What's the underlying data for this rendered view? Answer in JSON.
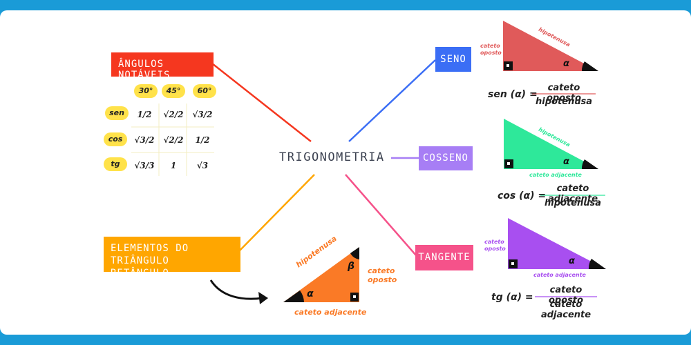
{
  "center": "TRIGONOMETRIA",
  "boxes": {
    "angulos": "ÂNGULOS NOTÁVEIS",
    "elementos_l1": "ELEMENTOS DO TRIÂNGULO",
    "elementos_l2": "RETÂNGULO",
    "seno": "SENO",
    "cosseno": "COSSENO",
    "tangente": "TANGENTE"
  },
  "table": {
    "angles": [
      "30°",
      "45°",
      "60°"
    ],
    "rows": [
      {
        "label": "sen",
        "values": [
          "1/2",
          "√2/2",
          "√3/2"
        ]
      },
      {
        "label": "cos",
        "values": [
          "√3/2",
          "√2/2",
          "1/2"
        ]
      },
      {
        "label": "tg",
        "values": [
          "√3/3",
          "1",
          "√3"
        ]
      }
    ]
  },
  "triangle_main": {
    "hyp": "hipotenusa",
    "opp_l1": "cateto",
    "opp_l2": "oposto",
    "adj": "cateto adjacente",
    "alpha": "α",
    "beta": "β"
  },
  "seno": {
    "opp_l1": "cateto",
    "opp_l2": "oposto",
    "hyp": "hipotenusa",
    "alpha": "α",
    "lhs": "sen (α) =",
    "num": "cateto oposto",
    "den": "hipotenusa"
  },
  "cosseno": {
    "hyp": "hipotenusa",
    "adj": "cateto adjacente",
    "alpha": "α",
    "lhs": "cos (α) =",
    "num": "cateto adjacente",
    "den": "hipotenusa"
  },
  "tangente": {
    "opp_l1": "cateto",
    "opp_l2": "oposto",
    "adj": "cateto adjacente",
    "alpha": "α",
    "lhs": "tg (α) =",
    "num": "cateto oposto",
    "den": "cateto adjacente"
  },
  "colors": {
    "background": "#1a9bd7",
    "angulos": "#f5371f",
    "elementos": "#ffa600",
    "seno": "#3b6ef5",
    "cosseno": "#a77ef5",
    "tangente": "#f5528a",
    "tri_main": "#fa7a26",
    "tri_seno": "#e05a5a",
    "tri_cos": "#2ee89a",
    "tri_tan": "#a84ff0"
  }
}
